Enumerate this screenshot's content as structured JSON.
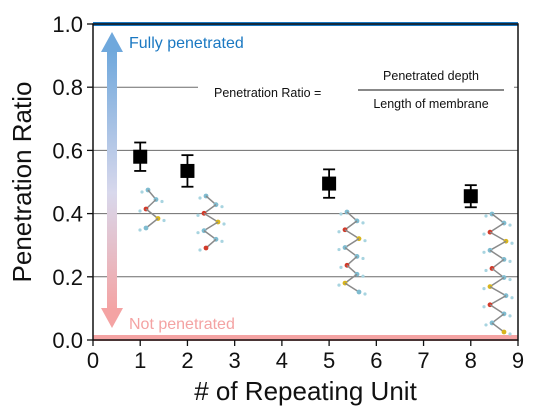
{
  "chart_data": {
    "type": "scatter",
    "xlabel": "# of Repeating Unit",
    "ylabel": "Penetration Ratio",
    "xlim": [
      0,
      9
    ],
    "ylim": [
      0,
      1.0
    ],
    "x_ticks": [
      "0",
      "1",
      "2",
      "3",
      "4",
      "5",
      "6",
      "7",
      "8",
      "9"
    ],
    "y_ticks": [
      "0.0",
      "0.2",
      "0.4",
      "0.6",
      "0.8",
      "1.0"
    ],
    "grid": "horizontal",
    "series": [
      {
        "points": [
          {
            "x": 1,
            "y": 0.58,
            "err": 0.045
          },
          {
            "x": 2,
            "y": 0.535,
            "err": 0.05
          },
          {
            "x": 5,
            "y": 0.495,
            "err": 0.045
          },
          {
            "x": 8,
            "y": 0.455,
            "err": 0.035
          }
        ]
      }
    ],
    "reference_lines": [
      {
        "y": 1.0,
        "label": "Fully penetrated",
        "color": "#1a78c2"
      },
      {
        "y": 0.0,
        "label": "Not penetrated",
        "color": "#f09a9a"
      }
    ],
    "formula": {
      "lhs": "Penetration Ratio =",
      "numerator": "Penetrated depth",
      "denominator": "Length of membrane"
    },
    "colors": {
      "marker": "#000000",
      "top_line": "#1a78c2",
      "bottom_line": "#f4a3a3",
      "arrow_top": "#6fa8dc",
      "arrow_bottom": "#f4a3a3",
      "grid": "#6b6b6b"
    }
  }
}
